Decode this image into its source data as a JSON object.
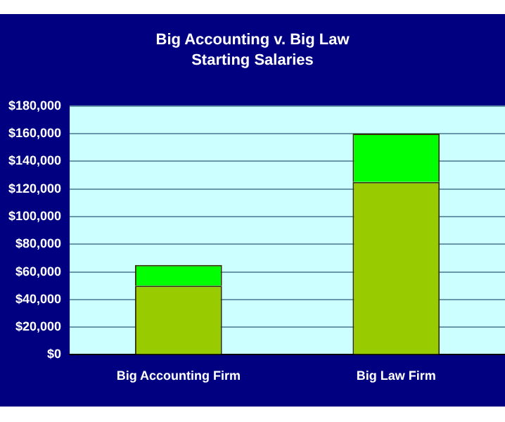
{
  "chart_data": {
    "type": "bar",
    "title": "Big Accounting v. Big Law",
    "subtitle": "Starting Salaries",
    "categories": [
      "Big Accounting Firm",
      "Big Law Firm"
    ],
    "series": [
      {
        "color": "#99cc00",
        "values": [
          50000,
          125000
        ]
      },
      {
        "color": "#00ff00",
        "values": [
          15000,
          35000
        ]
      }
    ],
    "stacked": true,
    "ylim": [
      0,
      180000
    ],
    "yticks": [
      {
        "value": 0,
        "label": "$0"
      },
      {
        "value": 20000,
        "label": "$20,000"
      },
      {
        "value": 40000,
        "label": "$40,000"
      },
      {
        "value": 60000,
        "label": "$60,000"
      },
      {
        "value": 80000,
        "label": "$80,000"
      },
      {
        "value": 100000,
        "label": "$100,000"
      },
      {
        "value": 120000,
        "label": "$120,000"
      },
      {
        "value": 140000,
        "label": "$140,000"
      },
      {
        "value": 160000,
        "label": "$160,000"
      },
      {
        "value": 180000,
        "label": "$180,000"
      }
    ],
    "grid": "y",
    "legend": false
  }
}
